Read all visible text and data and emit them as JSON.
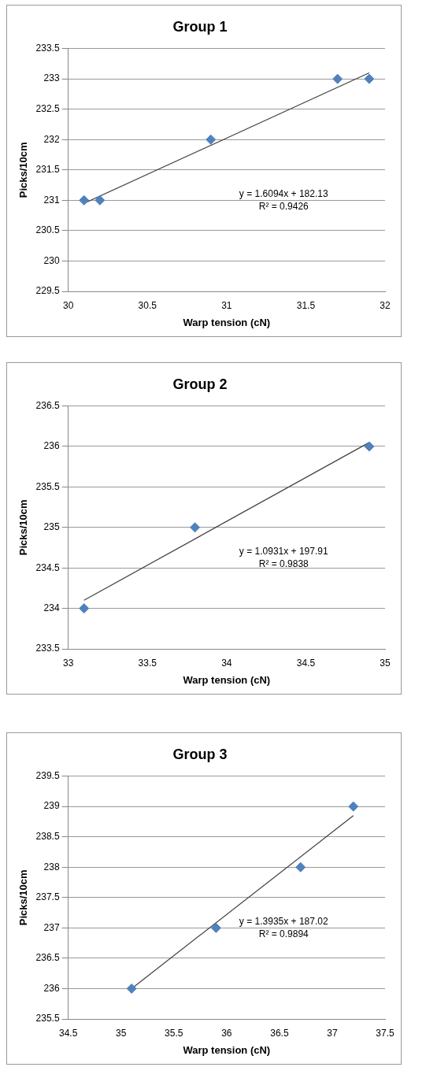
{
  "chart_data": [
    {
      "type": "scatter",
      "title": "Group 1",
      "xlabel": "Warp tension (cN)",
      "ylabel": "Picks/10cm",
      "xlim": [
        30,
        32
      ],
      "xticks": [
        30,
        30.5,
        31,
        31.5,
        32
      ],
      "ylim": [
        229.5,
        233.5
      ],
      "yticks": [
        229.5,
        230,
        230.5,
        231,
        231.5,
        232,
        232.5,
        233,
        233.5
      ],
      "grid": "y",
      "legend": false,
      "annotations": [
        "y = 1.6094x + 182.13",
        "R² = 0.9426"
      ],
      "series": [
        {
          "type": "scatter",
          "marker": "diamond",
          "color": "#4f81bd",
          "x": [
            30.1,
            30.2,
            30.9,
            31.7,
            31.9
          ],
          "values": [
            231,
            231,
            232,
            233,
            233
          ]
        },
        {
          "type": "line",
          "marker": "none",
          "color": "#404040",
          "x": [
            30.1,
            31.9
          ],
          "values": [
            230.95,
            233.1
          ]
        }
      ]
    },
    {
      "type": "scatter",
      "title": "Group 2",
      "xlabel": "Warp tension (cN)",
      "ylabel": "Picks/10cm",
      "xlim": [
        33,
        35
      ],
      "xticks": [
        33,
        33.5,
        34,
        34.5,
        35
      ],
      "ylim": [
        233.5,
        236.5
      ],
      "yticks": [
        233.5,
        234,
        234.5,
        235,
        235.5,
        236,
        236.5
      ],
      "grid": "y",
      "legend": false,
      "annotations": [
        "y = 1.0931x + 197.91",
        "R² = 0.9838"
      ],
      "series": [
        {
          "type": "scatter",
          "marker": "diamond",
          "color": "#4f81bd",
          "x": [
            33.1,
            33.8,
            34.9
          ],
          "values": [
            234,
            235,
            236
          ]
        },
        {
          "type": "line",
          "marker": "none",
          "color": "#404040",
          "x": [
            33.1,
            34.9
          ],
          "values": [
            234.1,
            236.05
          ]
        }
      ]
    },
    {
      "type": "scatter",
      "title": "Group 3",
      "xlabel": "Warp tension (cN)",
      "ylabel": "Picks/10cm",
      "xlim": [
        34.5,
        37.5
      ],
      "xticks": [
        34.5,
        35,
        35.5,
        36,
        36.5,
        37,
        37.5
      ],
      "ylim": [
        235.5,
        239.5
      ],
      "yticks": [
        235.5,
        236,
        236.5,
        237,
        237.5,
        238,
        238.5,
        239,
        239.5
      ],
      "grid": "y",
      "legend": false,
      "annotations": [
        "y = 1.3935x + 187.02",
        "R² = 0.9894"
      ],
      "series": [
        {
          "type": "scatter",
          "marker": "diamond",
          "color": "#4f81bd",
          "x": [
            35.1,
            35.9,
            36.7,
            37.2
          ],
          "values": [
            236,
            237,
            238,
            239
          ]
        },
        {
          "type": "line",
          "marker": "none",
          "color": "#404040",
          "x": [
            35.1,
            37.2
          ],
          "values": [
            236.0,
            238.85
          ]
        }
      ]
    }
  ]
}
